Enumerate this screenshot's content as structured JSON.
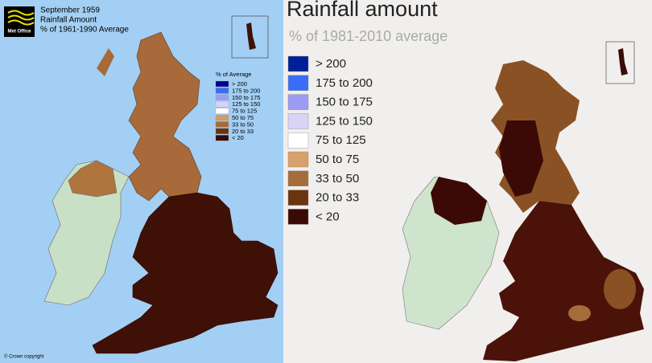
{
  "left_panel": {
    "logo": "Met Office",
    "title_lines": [
      "September 1959",
      "Rainfall Amount",
      "% of 1961-1990 Average"
    ],
    "legend": {
      "title": "% of Average",
      "items": [
        {
          "label": "> 200",
          "color": "#00008b"
        },
        {
          "label": "175 to 200",
          "color": "#3c6cf0"
        },
        {
          "label": "150 to 175",
          "color": "#9c9cf2"
        },
        {
          "label": "125 to 150",
          "color": "#d6d2f6"
        },
        {
          "label": "75 to 125",
          "color": "#ffffff"
        },
        {
          "label": "50 to 75",
          "color": "#d29c64"
        },
        {
          "label": "33 to 50",
          "color": "#a86a3a"
        },
        {
          "label": "20 to 33",
          "color": "#6a3410"
        },
        {
          "label": "< 20",
          "color": "#3a0a05"
        }
      ]
    },
    "copyright": "© Crown copyright"
  },
  "right_panel": {
    "title": "Rainfall amount",
    "subtitle": "% of 1981-2010 average",
    "legend": {
      "items": [
        {
          "label": "> 200",
          "color": "#00209a"
        },
        {
          "label": "175 to 200",
          "color": "#3a6cf6"
        },
        {
          "label": "150 to 175",
          "color": "#9c9cf4"
        },
        {
          "label": "125 to 150",
          "color": "#d8d4f8"
        },
        {
          "label": "75 to 125",
          "color": "#ffffff"
        },
        {
          "label": "50 to 75",
          "color": "#d8a06a"
        },
        {
          "label": "33 to 50",
          "color": "#a66c3c"
        },
        {
          "label": "20 to 33",
          "color": "#6a3410"
        },
        {
          "label": "< 20",
          "color": "#3c0a06"
        }
      ]
    }
  }
}
